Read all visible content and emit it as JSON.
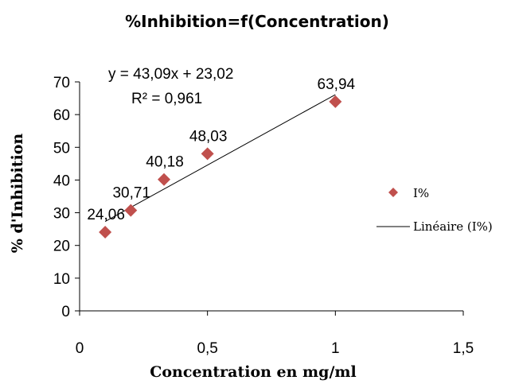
{
  "chart_data": {
    "type": "scatter",
    "title": "%Inhibition=f(Concentration)",
    "xlabel": "Concentration en mg/ml",
    "ylabel": "% d'Inhibition",
    "xlim": [
      0,
      1.5
    ],
    "ylim": [
      0,
      70
    ],
    "xticks": [
      0,
      0.5,
      1,
      1.5
    ],
    "xtick_labels": [
      "0",
      "0,5",
      "1",
      "1,5"
    ],
    "yticks": [
      0,
      10,
      20,
      30,
      40,
      50,
      60,
      70
    ],
    "ytick_labels": [
      "0",
      "10",
      "20",
      "30",
      "40",
      "50",
      "60",
      "70"
    ],
    "grid": false,
    "legend_position": "right",
    "series": [
      {
        "name": "I%",
        "color": "#C0504D",
        "marker": "diamond",
        "x": [
          0.1,
          0.2,
          0.33,
          0.5,
          1.0
        ],
        "y": [
          24.06,
          30.71,
          40.18,
          48.03,
          63.94
        ],
        "labels": [
          "24,06",
          "30,71",
          "40,18",
          "48,03",
          "63,94"
        ]
      }
    ],
    "trendline": {
      "name": "Linéaire (I%)",
      "type": "linear",
      "slope": 43.09,
      "intercept": 23.02,
      "x_range": [
        0.1,
        1.0
      ],
      "color": "#000000",
      "equation": "y = 43,09x + 23,02",
      "r_squared": "R² = 0,961"
    }
  }
}
